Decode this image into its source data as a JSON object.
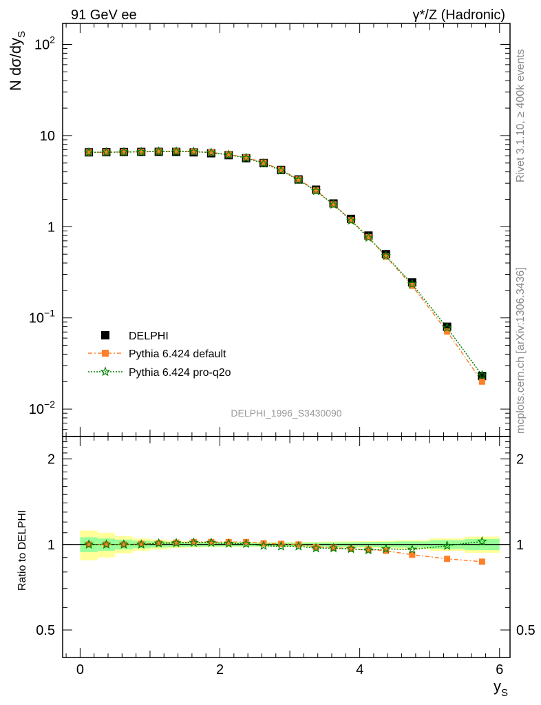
{
  "header": {
    "left": "91 GeV ee",
    "right": "γ*/Z (Hadronic)"
  },
  "side_labels": {
    "rivet": "Rivet 3.1.10, ≥ 400k events",
    "mcplots": "mcplots.cern.ch [arXiv:1306.3436]"
  },
  "analysis_tag": "DELPHI_1996_S3430090",
  "legend": {
    "data": "DELPHI",
    "mc1": "Pythia 6.424 default",
    "mc2": "Pythia 6.424 pro-q2o"
  },
  "colors": {
    "data": "#000000",
    "mc1": "#ff7f2a",
    "mc2": "#008000",
    "band_inner": "#99ff99",
    "band_outer": "#ffff99"
  },
  "chart_data": [
    {
      "type": "scatter",
      "ylabel": "N dσ/dy",
      "ylabel_sub": "S",
      "xlim": [
        -0.25,
        6.15
      ],
      "ylim": [
        0.005,
        170
      ],
      "yscale": "log",
      "y_ticks": [
        {
          "value": 0.01,
          "base": "10",
          "exp": "−2"
        },
        {
          "value": 0.1,
          "base": "10",
          "exp": "−1"
        },
        {
          "value": 1,
          "base": "1",
          "exp": ""
        },
        {
          "value": 10,
          "base": "10",
          "exp": ""
        },
        {
          "value": 100,
          "base": "10",
          "exp": "2"
        }
      ],
      "x": [
        0.125,
        0.375,
        0.625,
        0.875,
        1.125,
        1.375,
        1.625,
        1.875,
        2.125,
        2.375,
        2.625,
        2.875,
        3.125,
        3.375,
        3.625,
        3.875,
        4.125,
        4.375,
        4.75,
        5.25,
        5.75
      ],
      "series": [
        {
          "name": "DELPHI",
          "values": [
            6.55,
            6.57,
            6.6,
            6.62,
            6.63,
            6.62,
            6.55,
            6.4,
            6.1,
            5.65,
            5.0,
            4.2,
            3.3,
            2.55,
            1.8,
            1.22,
            0.8,
            0.5,
            0.245,
            0.08,
            0.023
          ]
        },
        {
          "name": "Pythia 6.424 default",
          "values": [
            6.55,
            6.57,
            6.6,
            6.65,
            6.7,
            6.72,
            6.68,
            6.52,
            6.2,
            5.75,
            5.05,
            4.22,
            3.3,
            2.5,
            1.76,
            1.18,
            0.77,
            0.47,
            0.225,
            0.071,
            0.02
          ]
        },
        {
          "name": "Pythia 6.424 pro-q2o",
          "values": [
            6.55,
            6.57,
            6.6,
            6.63,
            6.7,
            6.7,
            6.66,
            6.5,
            6.15,
            5.68,
            4.95,
            4.15,
            3.25,
            2.47,
            1.75,
            1.17,
            0.76,
            0.48,
            0.235,
            0.078,
            0.0235
          ]
        }
      ]
    },
    {
      "type": "scatter",
      "ylabel": "Ratio to DELPHI",
      "xlabel": "y",
      "xlabel_sub": "S",
      "xlim": [
        -0.25,
        6.15
      ],
      "ylim": [
        0.4,
        2.4
      ],
      "yscale": "log",
      "x_ticks": [
        0,
        2,
        4,
        6
      ],
      "y_ticks": [
        0.5,
        1,
        2
      ],
      "x_edges": [
        0,
        0.25,
        0.5,
        0.75,
        1,
        1.25,
        1.5,
        1.75,
        2,
        2.25,
        2.5,
        2.75,
        3,
        3.25,
        3.5,
        3.75,
        4,
        4.25,
        4.5,
        5,
        5.5,
        6
      ],
      "band_stat": [
        0.06,
        0.05,
        0.04,
        0.03,
        0.025,
        0.02,
        0.018,
        0.016,
        0.015,
        0.015,
        0.015,
        0.015,
        0.015,
        0.016,
        0.017,
        0.018,
        0.02,
        0.022,
        0.025,
        0.035,
        0.045
      ],
      "band_total": [
        0.12,
        0.1,
        0.07,
        0.05,
        0.04,
        0.03,
        0.025,
        0.022,
        0.02,
        0.02,
        0.02,
        0.02,
        0.02,
        0.022,
        0.024,
        0.026,
        0.028,
        0.03,
        0.035,
        0.05,
        0.065
      ],
      "x": [
        0.125,
        0.375,
        0.625,
        0.875,
        1.125,
        1.375,
        1.625,
        1.875,
        2.125,
        2.375,
        2.625,
        2.875,
        3.125,
        3.375,
        3.625,
        3.875,
        4.125,
        4.375,
        4.75,
        5.25,
        5.75
      ],
      "series": [
        {
          "name": "Pythia 6.424 default",
          "values": [
            1.0,
            1.0,
            1.0,
            1.005,
            1.01,
            1.015,
            1.02,
            1.02,
            1.02,
            1.02,
            1.01,
            1.005,
            1.0,
            0.98,
            0.975,
            0.965,
            0.96,
            0.95,
            0.92,
            0.89,
            0.87
          ]
        },
        {
          "name": "Pythia 6.424 pro-q2o",
          "values": [
            1.0,
            1.0,
            1.0,
            1.0,
            1.01,
            1.012,
            1.015,
            1.015,
            1.008,
            1.005,
            0.99,
            0.985,
            0.985,
            0.97,
            0.97,
            0.965,
            0.955,
            0.965,
            0.96,
            0.99,
            1.025
          ]
        }
      ]
    }
  ]
}
